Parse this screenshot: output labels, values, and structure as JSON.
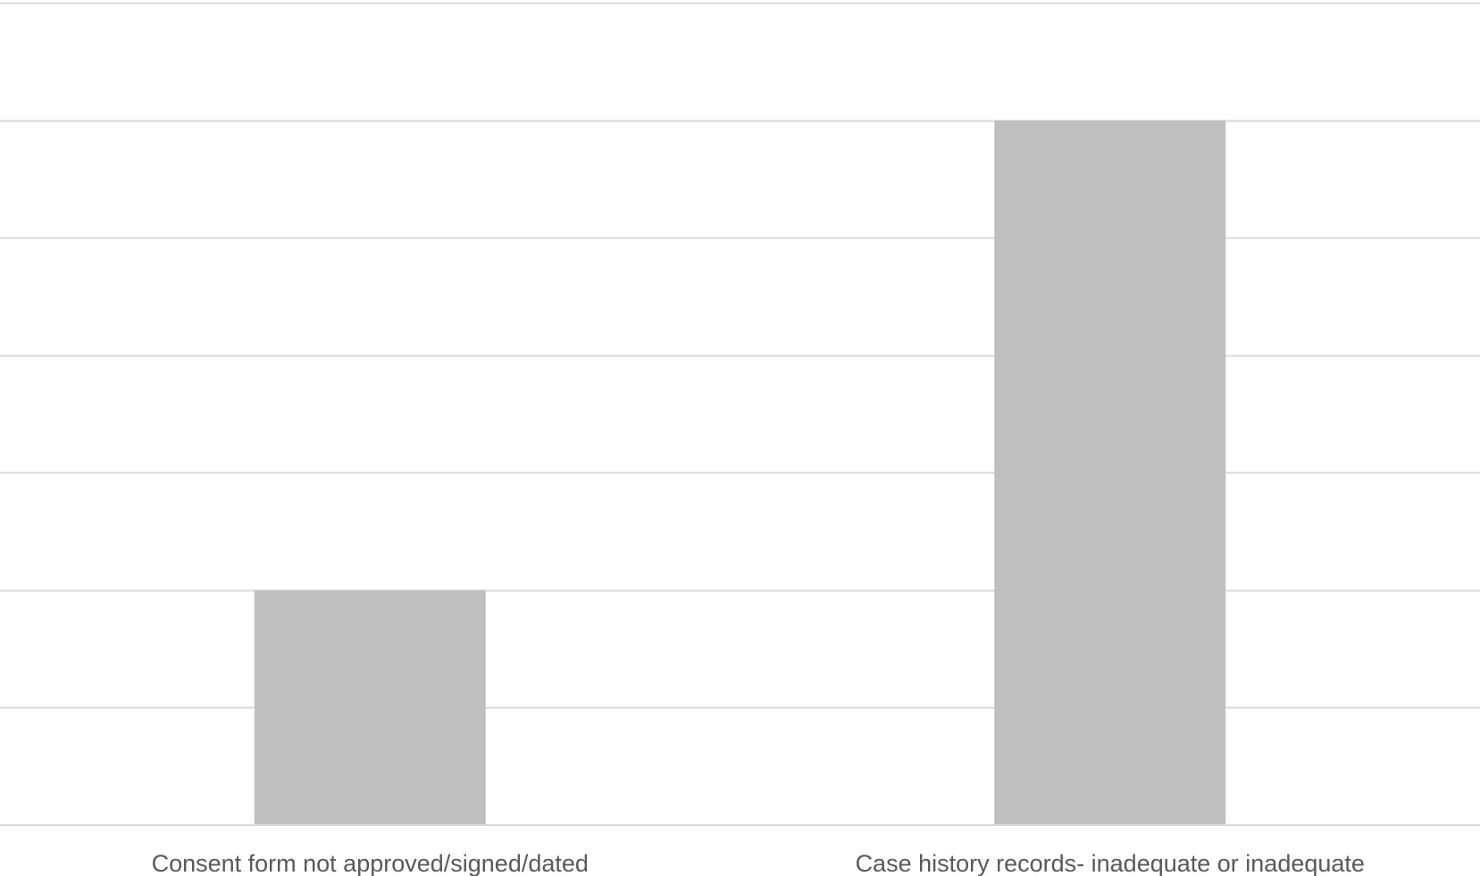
{
  "chart_data": {
    "type": "bar",
    "categories": [
      "Consent form not approved/signed/dated",
      "Case history records- inadequate or inadequate"
    ],
    "values": [
      2,
      6
    ],
    "ylim": [
      0,
      7
    ],
    "grid": true,
    "legend": "none",
    "colors": {
      "bar": "#bfbfbf",
      "grid": "#d9d9d9",
      "tick_label": "#595959"
    }
  }
}
